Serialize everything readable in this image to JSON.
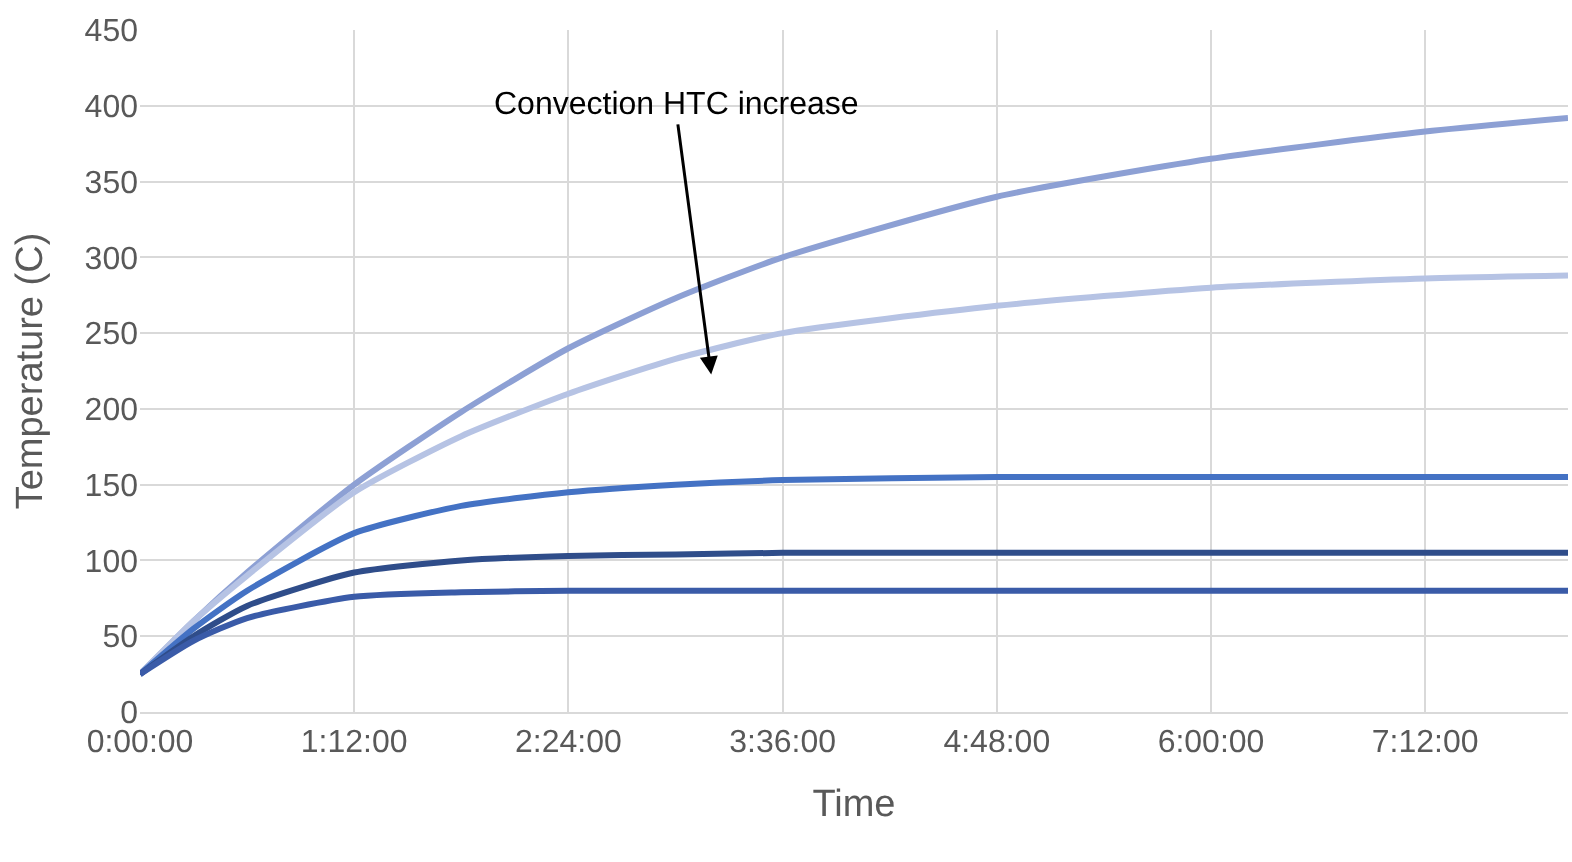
{
  "chart_data": {
    "type": "line",
    "xlabel": "Time",
    "ylabel": "Temperature (C)",
    "x": [
      0,
      0.3,
      0.6,
      1.2,
      1.8,
      2.4,
      3,
      3.6,
      4.8,
      6,
      7.2,
      8
    ],
    "series": [
      {
        "color": "#8da0d4",
        "values": [
          25,
          60,
          92,
          150,
          198,
          240,
          273,
          300,
          340,
          365,
          383,
          392
        ]
      },
      {
        "color": "#b6c3e4",
        "values": [
          25,
          60,
          90,
          145,
          182,
          210,
          233,
          250,
          268,
          280,
          286,
          288
        ]
      },
      {
        "color": "#4472c4",
        "values": [
          25,
          55,
          80,
          118,
          136,
          145,
          150,
          153,
          155,
          155,
          155,
          155
        ]
      },
      {
        "color": "#2f4d8a",
        "values": [
          25,
          50,
          70,
          92,
          100,
          103,
          104,
          105,
          105,
          105,
          105,
          105
        ]
      },
      {
        "color": "#3a5ba8",
        "values": [
          25,
          47,
          62,
          76,
          79,
          80,
          80,
          80,
          80,
          80,
          80,
          80
        ]
      }
    ],
    "xlim": [
      0,
      8
    ],
    "xticks": [
      {
        "value": 0,
        "label": "0:00:00"
      },
      {
        "value": 1.2,
        "label": "1:12:00"
      },
      {
        "value": 2.4,
        "label": "2:24:00"
      },
      {
        "value": 3.6,
        "label": "3:36:00"
      },
      {
        "value": 4.8,
        "label": "4:48:00"
      },
      {
        "value": 6,
        "label": "6:00:00"
      },
      {
        "value": 7.2,
        "label": "7:12:00"
      }
    ],
    "ylim": [
      0,
      450
    ],
    "yticks": [
      0,
      50,
      100,
      150,
      200,
      250,
      300,
      350,
      400,
      450
    ],
    "grid": true,
    "line_style": "solid",
    "annotations": [
      "Convection HTC increase"
    ]
  }
}
